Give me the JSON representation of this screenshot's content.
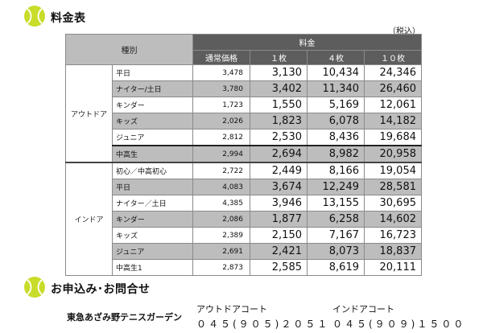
{
  "section1": {
    "title": "料金表"
  },
  "tax_note": "（税込）",
  "table": {
    "col_kind": "種別",
    "col_fee": "料金",
    "subheaders": [
      "通常価格",
      "１枚",
      "４枚",
      "１０枚"
    ],
    "groups": [
      {
        "name": "アウトドア",
        "rows": [
          {
            "name": "平日",
            "regular": "3,478",
            "one": "3,130",
            "four": "10,434",
            "ten": "24,346"
          },
          {
            "name": "ナイター/土日",
            "regular": "3,780",
            "one": "3,402",
            "four": "11,340",
            "ten": "26,460"
          },
          {
            "name": "キンダー",
            "regular": "1,723",
            "one": "1,550",
            "four": "5,169",
            "ten": "12,061"
          },
          {
            "name": "キッズ",
            "regular": "2,026",
            "one": "1,823",
            "four": "6,078",
            "ten": "14,182"
          },
          {
            "name": "ジュニア",
            "regular": "2,812",
            "one": "2,530",
            "four": "8,436",
            "ten": "19,684"
          },
          {
            "name": "中高生",
            "regular": "2,994",
            "one": "2,694",
            "four": "8,982",
            "ten": "20,958"
          }
        ]
      },
      {
        "name": "インドア",
        "rows": [
          {
            "name": "初心／中高初心",
            "regular": "2,722",
            "one": "2,449",
            "four": "8,166",
            "ten": "19,054"
          },
          {
            "name": "平日",
            "regular": "4,083",
            "one": "3,674",
            "four": "12,249",
            "ten": "28,581"
          },
          {
            "name": "ナイター／土日",
            "regular": "4,385",
            "one": "3,946",
            "four": "13,155",
            "ten": "30,695"
          },
          {
            "name": "キンダー",
            "regular": "2,086",
            "one": "1,877",
            "four": "6,258",
            "ten": "14,602"
          },
          {
            "name": "キッズ",
            "regular": "2,389",
            "one": "2,150",
            "four": "7,167",
            "ten": "16,723"
          },
          {
            "name": "ジュニア",
            "regular": "2,691",
            "one": "2,421",
            "four": "8,073",
            "ten": "18,837"
          },
          {
            "name": "中高生1",
            "regular": "2,873",
            "one": "2,585",
            "four": "8,619",
            "ten": "20,111"
          }
        ]
      }
    ]
  },
  "section2": {
    "title": "お申込み･お問合せ"
  },
  "contact": {
    "name": "東急あざみ野テニスガーデン",
    "outdoor_label": "アウトドアコート",
    "outdoor_tel": "０４５(９０５)２０５１",
    "indoor_label": "インドアコート",
    "indoor_tel": "０４５(９０９)１５００"
  },
  "colors": {
    "ball": "#c8dc2a",
    "header_dark": "#5d5d5d",
    "shade": "#bdbdbd"
  }
}
